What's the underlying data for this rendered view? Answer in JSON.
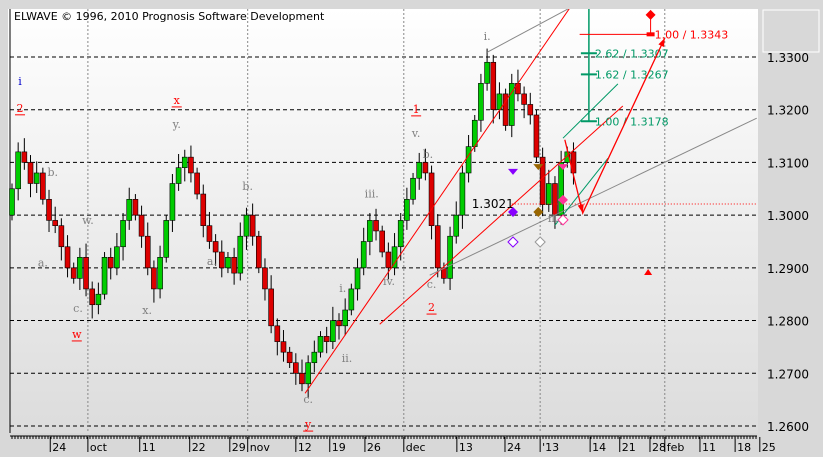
{
  "header": {
    "copyright": "ELWAVE © 1996, 2010 Prognosis Software Development"
  },
  "chart_data": {
    "type": "candlestick",
    "ylim": [
      1.258,
      1.3395
    ],
    "y_ticks": [
      "1.3300",
      "1.3200",
      "1.3100",
      "1.3000",
      "1.2900",
      "1.2800",
      "1.2700",
      "1.2600"
    ],
    "y_tick_values": [
      1.33,
      1.32,
      1.31,
      1.3,
      1.29,
      1.28,
      1.27,
      1.26
    ],
    "x_ticks": [
      {
        "label": "24",
        "i": 6.2
      },
      {
        "label": "oct",
        "i": 12.3,
        "month": true
      },
      {
        "label": "11",
        "i": 20.7
      },
      {
        "label": "22",
        "i": 28.8
      },
      {
        "label": "29",
        "i": 35.3
      },
      {
        "label": "nov",
        "i": 38.2,
        "month": true
      },
      {
        "label": "12",
        "i": 46
      },
      {
        "label": "19",
        "i": 51.5
      },
      {
        "label": "26",
        "i": 57.2
      },
      {
        "label": "dec",
        "i": 63.5,
        "month": true
      },
      {
        "label": "13",
        "i": 72.1
      },
      {
        "label": "24",
        "i": 79.9
      },
      {
        "label": "'13",
        "i": 85.6,
        "month": true
      },
      {
        "label": "14",
        "i": 93.7
      },
      {
        "label": "21",
        "i": 98.5
      },
      {
        "label": "28",
        "i": 103.4
      },
      {
        "label": "feb",
        "i": 105.8,
        "month": true
      },
      {
        "label": "11",
        "i": 111.5
      },
      {
        "label": "18",
        "i": 117.2
      },
      {
        "label": "25",
        "i": 121.2
      }
    ],
    "closes": [
      1.305,
      1.312,
      1.31,
      1.306,
      1.308,
      1.303,
      1.299,
      1.298,
      1.294,
      1.29,
      1.288,
      1.292,
      1.286,
      1.283,
      1.285,
      1.292,
      1.29,
      1.294,
      1.299,
      1.303,
      1.3,
      1.296,
      1.29,
      1.286,
      1.292,
      1.299,
      1.306,
      1.309,
      1.311,
      1.308,
      1.304,
      1.298,
      1.295,
      1.293,
      1.29,
      1.292,
      1.289,
      1.296,
      1.3,
      1.296,
      1.29,
      1.286,
      1.279,
      1.276,
      1.274,
      1.272,
      1.27,
      1.268,
      1.272,
      1.274,
      1.277,
      1.276,
      1.28,
      1.279,
      1.282,
      1.286,
      1.29,
      1.295,
      1.299,
      1.297,
      1.293,
      1.29,
      1.294,
      1.299,
      1.303,
      1.307,
      1.31,
      1.308,
      1.298,
      1.29,
      1.288,
      1.296,
      1.3,
      1.308,
      1.313,
      1.318,
      1.325,
      1.329,
      1.32,
      1.323,
      1.317,
      1.325,
      1.323,
      1.321,
      1.319,
      1.311,
      1.302,
      1.306,
      1.3,
      1.31,
      1.312,
      1.308
    ],
    "first_open": 1.3,
    "colors": {
      "up": "#00cc00",
      "down": "#dd0000",
      "wick": "#000000",
      "fib": "#009966",
      "target": "#ff0000",
      "channel": "#ff0000",
      "trend": "#888888"
    },
    "price_marker": {
      "label": "1.3021",
      "value": 1.3021,
      "from_i": 81
    },
    "fib_levels": [
      {
        "label": "2.62 / 1.3307",
        "value": 1.3307
      },
      {
        "label": "1.62 / 1.3267",
        "value": 1.3267
      },
      {
        "label": "1.00 / 1.3178",
        "value": 1.3178
      }
    ],
    "fib_axis": {
      "i": 93.5,
      "top": 1.3395,
      "bottom": 1.3178
    },
    "target": {
      "label": "1.00 / 1.3343",
      "value": 1.3343,
      "from_i": 92,
      "to_i": 103.7,
      "diamond": [
        103.5,
        1.338
      ]
    },
    "projection": [
      [
        89.6,
        1.3143
      ],
      [
        92.5,
        1.3004
      ],
      [
        105.8,
        1.3336
      ]
    ],
    "lines": [
      {
        "color": "channel",
        "from": [
          47.5,
          1.2662
        ],
        "to": [
          90.4,
          1.3393
        ]
      },
      {
        "color": "channel",
        "from": [
          59.6,
          1.2793
        ],
        "to": [
          99,
          1.3207
        ]
      },
      {
        "color": "trend",
        "from": [
          67.7,
          1.2886
        ],
        "to": [
          120.7,
          1.3184
        ]
      },
      {
        "color": "trend",
        "from": [
          77,
          1.3309
        ],
        "to": [
          90.4,
          1.3393
        ]
      },
      {
        "color": "fib",
        "from": [
          89.3,
          1.3146
        ],
        "to": [
          98.2,
          1.3249
        ]
      },
      {
        "color": "fib",
        "from": [
          88,
          1.2981
        ],
        "to": [
          96.6,
          1.3108
        ]
      }
    ],
    "wave_labels": [
      {
        "t": "i",
        "i": 1.3,
        "p": 1.3247,
        "c": "#0000cc"
      },
      {
        "t": "2",
        "i": 1.3,
        "p": 1.3196,
        "c": "#ff0000",
        "u": true
      },
      {
        "t": "x",
        "i": 26.7,
        "p": 1.3211,
        "c": "#ff0000",
        "u": true
      },
      {
        "t": "y.",
        "i": 26.7,
        "p": 1.3165,
        "c": "#808080"
      },
      {
        "t": "b.",
        "i": 6.6,
        "p": 1.3074,
        "c": "#808080"
      },
      {
        "t": "w.",
        "i": 12.3,
        "p": 1.2983,
        "c": "#808080"
      },
      {
        "t": "a.",
        "i": 5.0,
        "p": 1.2903,
        "c": "#808080"
      },
      {
        "t": "c.",
        "i": 10.7,
        "p": 1.2816,
        "c": "#808080"
      },
      {
        "t": "w",
        "i": 10.5,
        "p": 1.2767,
        "c": "#ff0000",
        "u": true
      },
      {
        "t": "x.",
        "i": 21.9,
        "p": 1.2812,
        "c": "#808080"
      },
      {
        "t": "b.",
        "i": 38.2,
        "p": 1.3048,
        "c": "#808080"
      },
      {
        "t": "a.",
        "i": 32.4,
        "p": 1.2905,
        "c": "#808080"
      },
      {
        "t": "c.",
        "i": 48,
        "p": 1.2644,
        "c": "#808080"
      },
      {
        "t": "y",
        "i": 48,
        "p": 1.2596,
        "c": "#ff0000",
        "u": true
      },
      {
        "t": "i.",
        "i": 53.6,
        "p": 1.2854,
        "c": "#808080"
      },
      {
        "t": "ii.",
        "i": 54.3,
        "p": 1.2721,
        "c": "#808080"
      },
      {
        "t": "iii.",
        "i": 58.3,
        "p": 1.3033,
        "c": "#808080"
      },
      {
        "t": "iv.",
        "i": 61.1,
        "p": 1.2867,
        "c": "#808080"
      },
      {
        "t": "v.",
        "i": 65.5,
        "p": 1.3148,
        "c": "#808080"
      },
      {
        "t": "b.",
        "i": 67.4,
        "p": 1.3108,
        "c": "#808080"
      },
      {
        "t": "c.",
        "i": 68,
        "p": 1.2862,
        "c": "#808080"
      },
      {
        "t": "1",
        "i": 65.5,
        "p": 1.3194,
        "c": "#ff0000",
        "u": true
      },
      {
        "t": "2",
        "i": 68,
        "p": 1.2818,
        "c": "#ff0000",
        "u": true
      },
      {
        "t": "i.",
        "i": 77,
        "p": 1.3332,
        "c": "#808080"
      },
      {
        "t": "ii.",
        "i": 87.7,
        "p": 1.2987,
        "c": "#808080"
      }
    ],
    "markers": [
      {
        "shape": "tri-down",
        "i": 81.2,
        "p": 1.3082,
        "c": "#8800ff"
      },
      {
        "shape": "diamond",
        "i": 81.2,
        "p": 1.3006,
        "c": "#8800ff"
      },
      {
        "shape": "tri-down",
        "i": 85.3,
        "p": 1.3091,
        "c": "#996600"
      },
      {
        "shape": "diamond",
        "i": 85.3,
        "p": 1.3006,
        "c": "#996600"
      },
      {
        "shape": "tri-down",
        "i": 89.3,
        "p": 1.3091,
        "c": "#ff3399"
      },
      {
        "shape": "diamond",
        "i": 89.3,
        "p": 1.3029,
        "c": "#ff3399"
      },
      {
        "shape": "diamond-open",
        "i": 81.2,
        "p": 1.2949,
        "c": "#8800ff"
      },
      {
        "shape": "diamond-open",
        "i": 85.6,
        "p": 1.2949,
        "c": "#999999"
      },
      {
        "shape": "diamond-open",
        "i": 89.3,
        "p": 1.2991,
        "c": "#ff3399"
      },
      {
        "shape": "tri-up",
        "i": 103.1,
        "p": 1.2892,
        "c": "#ff0000"
      }
    ]
  }
}
